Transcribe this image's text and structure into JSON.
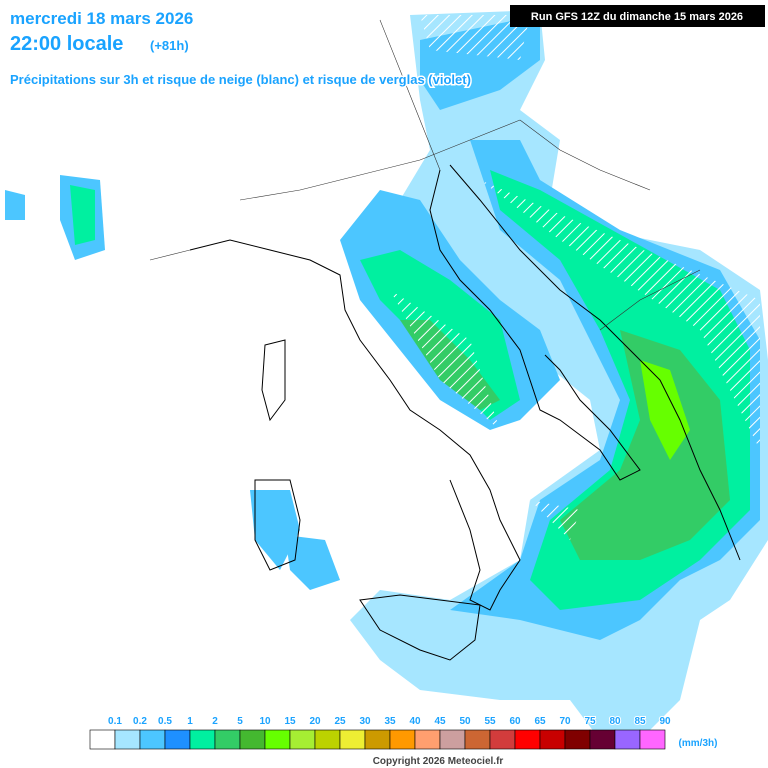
{
  "header": {
    "date": "mercredi 18 mars 2026",
    "time": "22:00 locale",
    "lead": "(+81h)",
    "subtitle": "Précipitations sur 3h et risque de neige (blanc) et risque de verglas (violet)",
    "run": "Run GFS 12Z du dimanche 15 mars 2026"
  },
  "legend": {
    "labels": [
      "0.1",
      "0.2",
      "0.5",
      "1",
      "2",
      "5",
      "10",
      "15",
      "20",
      "25",
      "30",
      "35",
      "40",
      "45",
      "50",
      "55",
      "60",
      "65",
      "70",
      "75",
      "80",
      "85",
      "90"
    ],
    "colors": [
      "#ffffff",
      "#a6e6ff",
      "#4cc6ff",
      "#1e90ff",
      "#00f0a0",
      "#33cc66",
      "#44b830",
      "#66ff00",
      "#a6ee33",
      "#bcd200",
      "#eeee33",
      "#cc9a00",
      "#ff9900",
      "#ff9f6f",
      "#cc9f9f",
      "#cc6633",
      "#d23c3c",
      "#ff0000",
      "#c80000",
      "#800000",
      "#660033",
      "#9966ff",
      "#ff66ff"
    ],
    "unit": "(mm/3h)"
  },
  "footer": {
    "copyright": "Copyright 2026 Meteociel.fr"
  }
}
